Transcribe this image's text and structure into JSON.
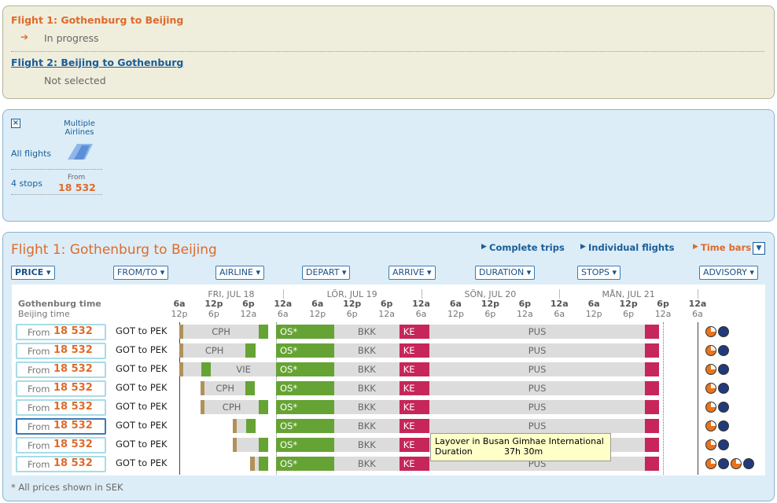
{
  "header": {
    "flight1_title": "Flight 1: Gothenburg to Beijing",
    "flight1_status": "In progress",
    "flight2_title": "Flight 2: Beijing to Gothenburg",
    "flight2_status": "Not selected"
  },
  "filter": {
    "airline": "Multiple Airlines",
    "all_flights": "All flights",
    "stops": "4 stops",
    "from": "From",
    "price": "18 532"
  },
  "results": {
    "title": "Flight 1: Gothenburg to Beijing",
    "tabs": [
      "Complete trips",
      "Individual flights",
      "Time bars"
    ],
    "sort_buttons": [
      "PRICE",
      "FROM/TO",
      "AIRLINE",
      "DEPART",
      "ARRIVE",
      "DURATION",
      "STOPS",
      "ADVISORY"
    ],
    "origin_time": "Gothenburg time",
    "destination_time": "Beijing time",
    "days": [
      "FRI, JUL 18",
      "LÖR, JUL 19",
      "SÖN, JUL 20",
      "MÅN, JUL 21"
    ],
    "ticks": [
      {
        "value": 0,
        "label": "6a"
      },
      {
        "value": 6,
        "label": "12p"
      },
      {
        "value": 12,
        "label": "6p"
      },
      {
        "value": 18,
        "label": "12a"
      },
      {
        "value": 24,
        "label": "6a"
      },
      {
        "value": 30,
        "label": "12p"
      },
      {
        "value": 36,
        "label": "6p"
      },
      {
        "value": 42,
        "label": "12a"
      },
      {
        "value": 48,
        "label": "6a"
      },
      {
        "value": 54,
        "label": "12p"
      },
      {
        "value": 60,
        "label": "6p"
      },
      {
        "value": 66,
        "label": "12a"
      },
      {
        "value": 72,
        "label": "6a"
      },
      {
        "value": 78,
        "label": "12p"
      },
      {
        "value": 84,
        "label": "6p"
      },
      {
        "value": 90,
        "label": "12a"
      }
    ],
    "second_tick_labels": [
      "12p",
      "6p",
      "12a",
      "6a",
      "12p",
      "6p",
      "12a",
      "6a",
      "12p",
      "6p",
      "12a",
      "6a",
      "12p",
      "6p",
      "12a",
      "6a"
    ],
    "rows": [
      {
        "from": "From",
        "price": "18 532",
        "route": "GOT to PEK",
        "segments": [
          {
            "from": 0,
            "to": 0.7,
            "color": "#b09158"
          },
          {
            "from": 0.7,
            "to": 13.8,
            "color": "#dcdcdc",
            "label": "CPH"
          },
          {
            "from": 13.8,
            "to": 15.4,
            "color": "#66a335"
          },
          {
            "from": 16.8,
            "to": 26.9,
            "color": "#66a335",
            "label": "OS*"
          },
          {
            "from": 26.9,
            "to": 38.2,
            "color": "#dcdcdc",
            "label": "BKK"
          },
          {
            "from": 38.2,
            "to": 43.4,
            "color": "#c6265a",
            "label": "KE"
          },
          {
            "from": 43.4,
            "to": 80.9,
            "color": "#dcdcdc",
            "label": "PUS"
          },
          {
            "from": 80.9,
            "to": 83.3,
            "color": "#c6265a"
          }
        ]
      },
      {
        "from": "From",
        "price": "18 532",
        "route": "GOT to PEK",
        "segments": [
          {
            "from": 0,
            "to": 0.7,
            "color": "#b09158"
          },
          {
            "from": 0.7,
            "to": 11.5,
            "color": "#dcdcdc",
            "label": "CPH"
          },
          {
            "from": 11.5,
            "to": 13.3,
            "color": "#66a335"
          },
          {
            "from": 16.8,
            "to": 26.9,
            "color": "#66a335",
            "label": "OS*"
          },
          {
            "from": 26.9,
            "to": 38.2,
            "color": "#dcdcdc",
            "label": "BKK"
          },
          {
            "from": 38.2,
            "to": 43.4,
            "color": "#c6265a",
            "label": "KE"
          },
          {
            "from": 43.4,
            "to": 80.9,
            "color": "#dcdcdc",
            "label": "PUS"
          },
          {
            "from": 80.9,
            "to": 83.3,
            "color": "#c6265a"
          }
        ]
      },
      {
        "from": "From",
        "price": "18 532",
        "route": "GOT to PEK",
        "segments": [
          {
            "from": 0,
            "to": 0.7,
            "color": "#b09158"
          },
          {
            "from": 0.7,
            "to": 3.8,
            "color": "#dcdcdc"
          },
          {
            "from": 3.8,
            "to": 5.5,
            "color": "#66a335"
          },
          {
            "from": 5.5,
            "to": 16.8,
            "color": "#dcdcdc",
            "label": "VIE"
          },
          {
            "from": 16.8,
            "to": 26.9,
            "color": "#66a335",
            "label": "OS*"
          },
          {
            "from": 26.9,
            "to": 38.2,
            "color": "#dcdcdc",
            "label": "BKK"
          },
          {
            "from": 38.2,
            "to": 43.4,
            "color": "#c6265a",
            "label": "KE"
          },
          {
            "from": 43.4,
            "to": 80.9,
            "color": "#dcdcdc",
            "label": "PUS"
          },
          {
            "from": 80.9,
            "to": 83.3,
            "color": "#c6265a"
          }
        ]
      },
      {
        "from": "From",
        "price": "18 532",
        "route": "GOT to PEK",
        "segments": [
          {
            "from": 3.7,
            "to": 4.4,
            "color": "#b09158"
          },
          {
            "from": 4.4,
            "to": 11.5,
            "color": "#dcdcdc",
            "label": "CPH"
          },
          {
            "from": 11.5,
            "to": 13.1,
            "color": "#66a335"
          },
          {
            "from": 16.8,
            "to": 26.9,
            "color": "#66a335",
            "label": "OS*"
          },
          {
            "from": 26.9,
            "to": 38.2,
            "color": "#dcdcdc",
            "label": "BKK"
          },
          {
            "from": 38.2,
            "to": 43.4,
            "color": "#c6265a",
            "label": "KE"
          },
          {
            "from": 43.4,
            "to": 80.9,
            "color": "#dcdcdc",
            "label": "PUS"
          },
          {
            "from": 80.9,
            "to": 83.3,
            "color": "#c6265a"
          }
        ]
      },
      {
        "from": "From",
        "price": "18 532",
        "route": "GOT to PEK",
        "segments": [
          {
            "from": 3.7,
            "to": 4.4,
            "color": "#b09158"
          },
          {
            "from": 4.4,
            "to": 13.8,
            "color": "#dcdcdc",
            "label": "CPH"
          },
          {
            "from": 13.8,
            "to": 15.4,
            "color": "#66a335"
          },
          {
            "from": 16.8,
            "to": 26.9,
            "color": "#66a335",
            "label": "OS*"
          },
          {
            "from": 26.9,
            "to": 38.2,
            "color": "#dcdcdc",
            "label": "BKK"
          },
          {
            "from": 38.2,
            "to": 43.4,
            "color": "#c6265a",
            "label": "KE"
          },
          {
            "from": 43.4,
            "to": 80.9,
            "color": "#dcdcdc",
            "label": "PUS"
          },
          {
            "from": 80.9,
            "to": 83.3,
            "color": "#c6265a"
          }
        ]
      },
      {
        "from": "From",
        "price": "18 532",
        "route": "GOT to PEK",
        "selected": true,
        "segments": [
          {
            "from": 9.3,
            "to": 10.0,
            "color": "#b09158"
          },
          {
            "from": 10.0,
            "to": 11.6,
            "color": "#dcdcdc"
          },
          {
            "from": 11.6,
            "to": 13.2,
            "color": "#66a335"
          },
          {
            "from": 16.8,
            "to": 26.9,
            "color": "#66a335",
            "label": "OS*"
          },
          {
            "from": 26.9,
            "to": 38.2,
            "color": "#dcdcdc",
            "label": "BKK"
          },
          {
            "from": 38.2,
            "to": 43.4,
            "color": "#c6265a",
            "label": "KE"
          },
          {
            "from": 43.4,
            "to": 80.9,
            "color": "#dcdcdc",
            "label": "PUS"
          },
          {
            "from": 80.9,
            "to": 83.3,
            "color": "#c6265a"
          }
        ]
      },
      {
        "from": "From",
        "price": "18 532",
        "route": "GOT to PEK",
        "segments": [
          {
            "from": 9.3,
            "to": 10.0,
            "color": "#b09158"
          },
          {
            "from": 10.0,
            "to": 13.8,
            "color": "#dcdcdc"
          },
          {
            "from": 13.8,
            "to": 15.4,
            "color": "#66a335"
          },
          {
            "from": 16.8,
            "to": 26.9,
            "color": "#66a335",
            "label": "OS*"
          },
          {
            "from": 26.9,
            "to": 38.2,
            "color": "#dcdcdc",
            "label": "BKK"
          },
          {
            "from": 38.2,
            "to": 43.4,
            "color": "#c6265a",
            "label": "KE"
          },
          {
            "from": 43.4,
            "to": 80.9,
            "color": "#dcdcdc"
          },
          {
            "from": 80.9,
            "to": 83.3,
            "color": "#c6265a"
          }
        ]
      },
      {
        "from": "From",
        "price": "18 532",
        "route": "GOT to PEK",
        "segments": [
          {
            "from": 12.3,
            "to": 13.1,
            "color": "#b09158"
          },
          {
            "from": 13.1,
            "to": 13.8,
            "color": "#dcdcdc"
          },
          {
            "from": 13.8,
            "to": 15.4,
            "color": "#66a335"
          },
          {
            "from": 16.8,
            "to": 26.9,
            "color": "#66a335",
            "label": "OS*"
          },
          {
            "from": 26.9,
            "to": 38.2,
            "color": "#dcdcdc",
            "label": "BKK"
          },
          {
            "from": 38.2,
            "to": 43.4,
            "color": "#c6265a",
            "label": "KE"
          },
          {
            "from": 43.4,
            "to": 80.9,
            "color": "#dcdcdc",
            "label": "PUS"
          },
          {
            "from": 80.9,
            "to": 83.3,
            "color": "#c6265a"
          }
        ]
      }
    ],
    "tooltip": {
      "title": "Layover in Busan Gimhae International",
      "duration_label": "Duration",
      "duration": "37h 30m"
    },
    "footnote": "* All prices shown in SEK"
  }
}
